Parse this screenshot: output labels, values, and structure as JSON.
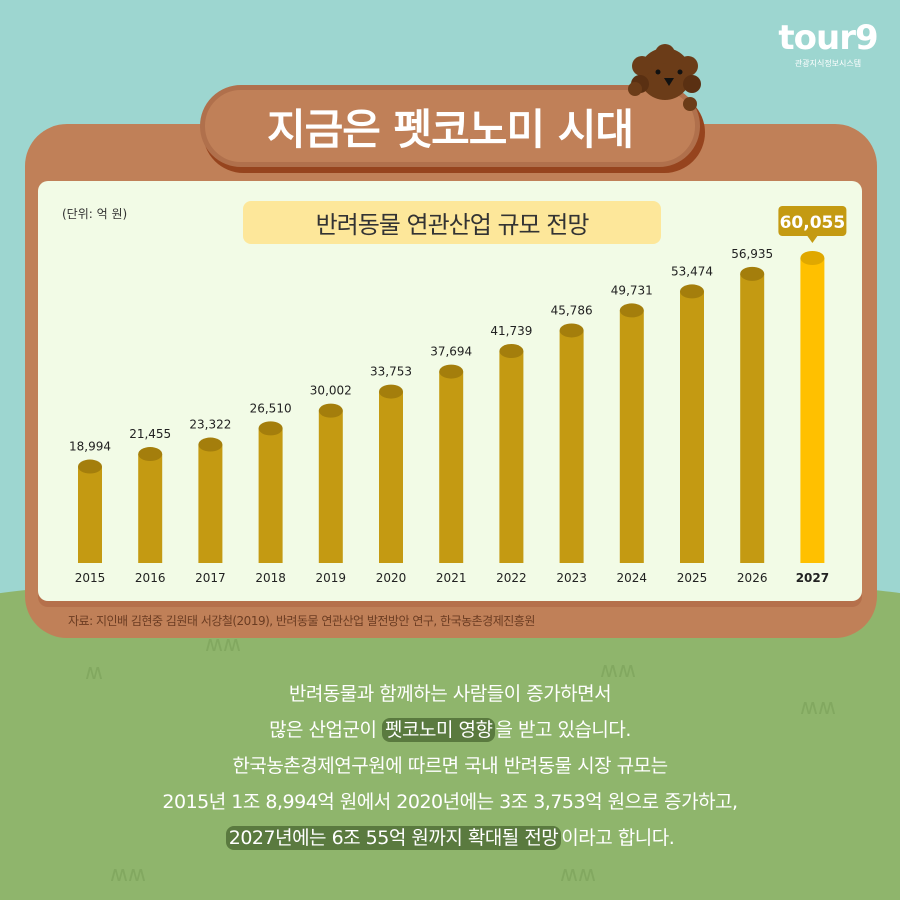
{
  "logo": {
    "mark": "tour9",
    "sub": "관광지식정보시스템"
  },
  "header": {
    "title": "지금은 펫코노미 시대"
  },
  "chart_data": {
    "type": "bar",
    "title": "반려동물 연관산업 규모 전망",
    "unit": "(단위: 억 원)",
    "categories": [
      "2015",
      "2016",
      "2017",
      "2018",
      "2019",
      "2020",
      "2021",
      "2022",
      "2023",
      "2024",
      "2025",
      "2026",
      "2027"
    ],
    "values": [
      18994,
      21455,
      23322,
      26510,
      30002,
      33753,
      37694,
      41739,
      45786,
      49731,
      53474,
      56935,
      60055
    ],
    "value_labels": [
      "18,994",
      "21,455",
      "23,322",
      "26,510",
      "30,002",
      "33,753",
      "37,694",
      "41,739",
      "45,786",
      "49,731",
      "53,474",
      "56,935",
      "60,055"
    ],
    "highlight_index": 12,
    "ylim": [
      0,
      60055
    ],
    "colors": {
      "bar": "#c49a12",
      "bar_top": "#a47e0c",
      "highlight": "#ffc000",
      "highlight_top": "#e0a800",
      "callout": "#c49a12"
    },
    "grid": false
  },
  "source": "자료: 지인배 김현중 김원태 서강철(2019), 반려동물 연관산업 발전방안 연구, 한국농촌경제진흥원",
  "body": {
    "line1": "반려동물과 함께하는 사람들이 증가하면서",
    "line2a": "많은 산업군이 ",
    "line2b": "펫코노미 영향",
    "line2c": "을 받고 있습니다.",
    "line3": "한국농촌경제연구원에 따르면 국내 반려동물 시장 규모는",
    "line4": "2015년 1조 8,994억 원에서 2020년에는 3조 3,753억 원으로 증가하고,",
    "line5a": "2027년에는 6조 55억 원까지 확대될 전망",
    "line5b": "이라고 합니다."
  }
}
